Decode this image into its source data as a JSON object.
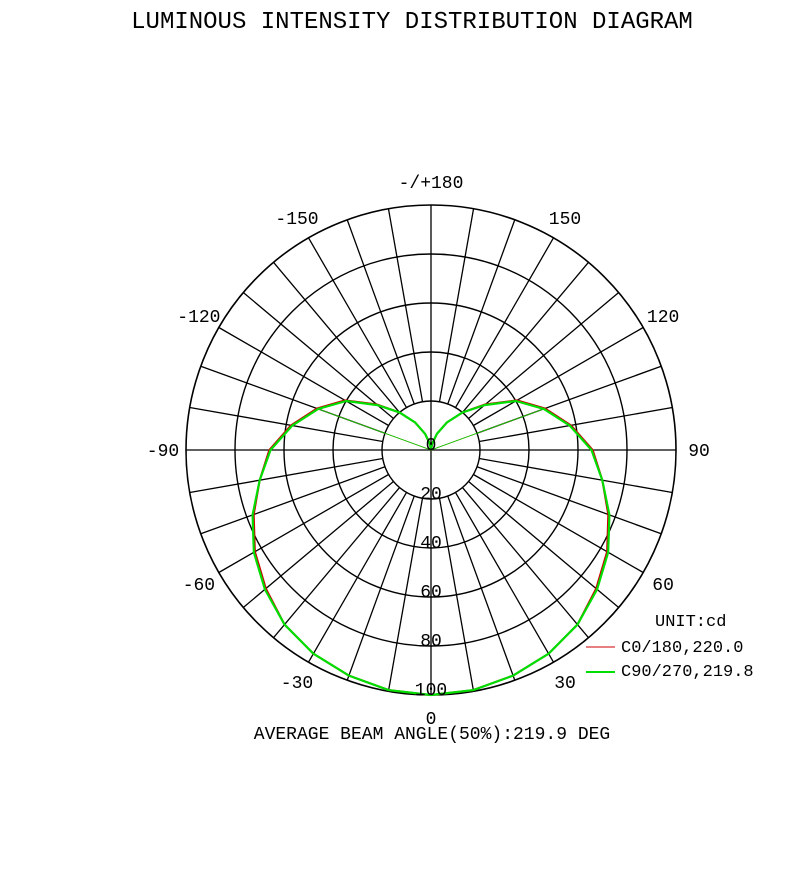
{
  "chart_data": {
    "type": "polar",
    "title": "LUMINOUS INTENSITY DISTRIBUTION DIAGRAM",
    "unit_label": "UNIT:cd",
    "footer": "AVERAGE BEAM ANGLE(50%):219.9 DEG",
    "angle_labels": [
      {
        "angle": 180,
        "text": "-/+180"
      },
      {
        "angle": 150,
        "text": "150"
      },
      {
        "angle": 120,
        "text": "120"
      },
      {
        "angle": 90,
        "text": "90"
      },
      {
        "angle": 60,
        "text": "60"
      },
      {
        "angle": 30,
        "text": "30"
      },
      {
        "angle": 0,
        "text": "0"
      },
      {
        "angle": -30,
        "text": "-30"
      },
      {
        "angle": -60,
        "text": "-60"
      },
      {
        "angle": -90,
        "text": "-90"
      },
      {
        "angle": -120,
        "text": "-120"
      },
      {
        "angle": -150,
        "text": "-150"
      }
    ],
    "radial_ticks": [
      "0",
      "20",
      "40",
      "60",
      "80",
      "100"
    ],
    "rmax": 100,
    "angle_grid_step_deg": 10,
    "angles": [
      0,
      10,
      20,
      30,
      40,
      50,
      60,
      70,
      80,
      90,
      100,
      110,
      120,
      130,
      140,
      150,
      160,
      170,
      180
    ],
    "series": [
      {
        "name": "C0/180,220.0",
        "color": "#cc0000",
        "values": [
          100,
          99.5,
          98,
          96,
          93,
          88,
          83,
          77,
          71,
          66,
          58,
          49.5,
          40.5,
          29,
          20,
          13,
          7,
          2.5,
          0
        ]
      },
      {
        "name": "C90/270,219.8",
        "color": "#00dd00",
        "values": [
          100,
          99.5,
          98,
          96,
          93,
          88.5,
          83.5,
          77.5,
          71,
          65.5,
          57.5,
          49,
          40,
          28.5,
          20,
          13,
          7,
          2.5,
          0
        ]
      }
    ],
    "beam_angle_line_deg": 110,
    "grid": true
  }
}
